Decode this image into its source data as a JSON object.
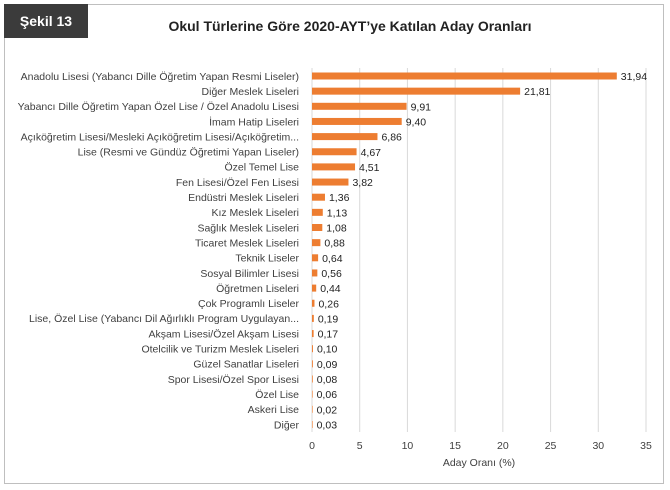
{
  "figure_label": "Şekil 13",
  "colors": {
    "bar": "#ed7d31",
    "label_bg": "#3b3b3b",
    "grid": "#d9d9d9"
  },
  "chart_data": {
    "type": "bar",
    "orientation": "horizontal",
    "title": "Okul Türlerine Göre 2020-AYT’ye Katılan Aday Oranları",
    "xlabel": "Aday Oranı (%)",
    "ylabel": "",
    "xlim": [
      0,
      35
    ],
    "xticks": [
      0,
      5,
      10,
      15,
      20,
      25,
      30,
      35
    ],
    "grid": "vertical",
    "legend": "none",
    "categories": [
      "Anadolu Lisesi (Yabancı Dille Öğretim Yapan Resmi Liseler)",
      "Diğer Meslek Liseleri",
      "Yabancı Dille Öğretim Yapan Özel Lise / Özel Anadolu Lisesi",
      "İmam Hatip Liseleri",
      "Açıköğretim Lisesi/Mesleki Açıköğretim Lisesi/Açıköğretim...",
      "Lise (Resmi ve Gündüz Öğretimi Yapan Liseler)",
      "Özel Temel Lise",
      "Fen Lisesi/Özel Fen Lisesi",
      "Endüstri Meslek Liseleri",
      "Kız Meslek Liseleri",
      "Sağlık Meslek Liseleri",
      "Ticaret Meslek Liseleri",
      "Teknik Liseler",
      "Sosyal Bilimler Lisesi",
      "Öğretmen Liseleri",
      "Çok Programlı Liseler",
      "Lise, Özel Lise (Yabancı Dil Ağırlıklı Program Uygulayan...",
      "Akşam Lisesi/Özel Akşam Lisesi",
      "Otelcilik ve Turizm Meslek Liseleri",
      "Güzel Sanatlar Liseleri",
      "Spor Lisesi/Özel Spor Lisesi",
      "Özel Lise",
      "Askeri Lise",
      "Diğer"
    ],
    "values": [
      31.94,
      21.81,
      9.91,
      9.4,
      6.86,
      4.67,
      4.51,
      3.82,
      1.36,
      1.13,
      1.08,
      0.88,
      0.64,
      0.56,
      0.44,
      0.26,
      0.19,
      0.17,
      0.1,
      0.09,
      0.08,
      0.06,
      0.02,
      0.03
    ],
    "value_labels": [
      "31,94",
      "21,81",
      "9,91",
      "9,40",
      "6,86",
      "4,67",
      "4,51",
      "3,82",
      "1,36",
      "1,13",
      "1,08",
      "0,88",
      "0,64",
      "0,56",
      "0,44",
      "0,26",
      "0,19",
      "0,17",
      "0,10",
      "0,09",
      "0,08",
      "0,06",
      "0,02",
      "0,03"
    ]
  }
}
